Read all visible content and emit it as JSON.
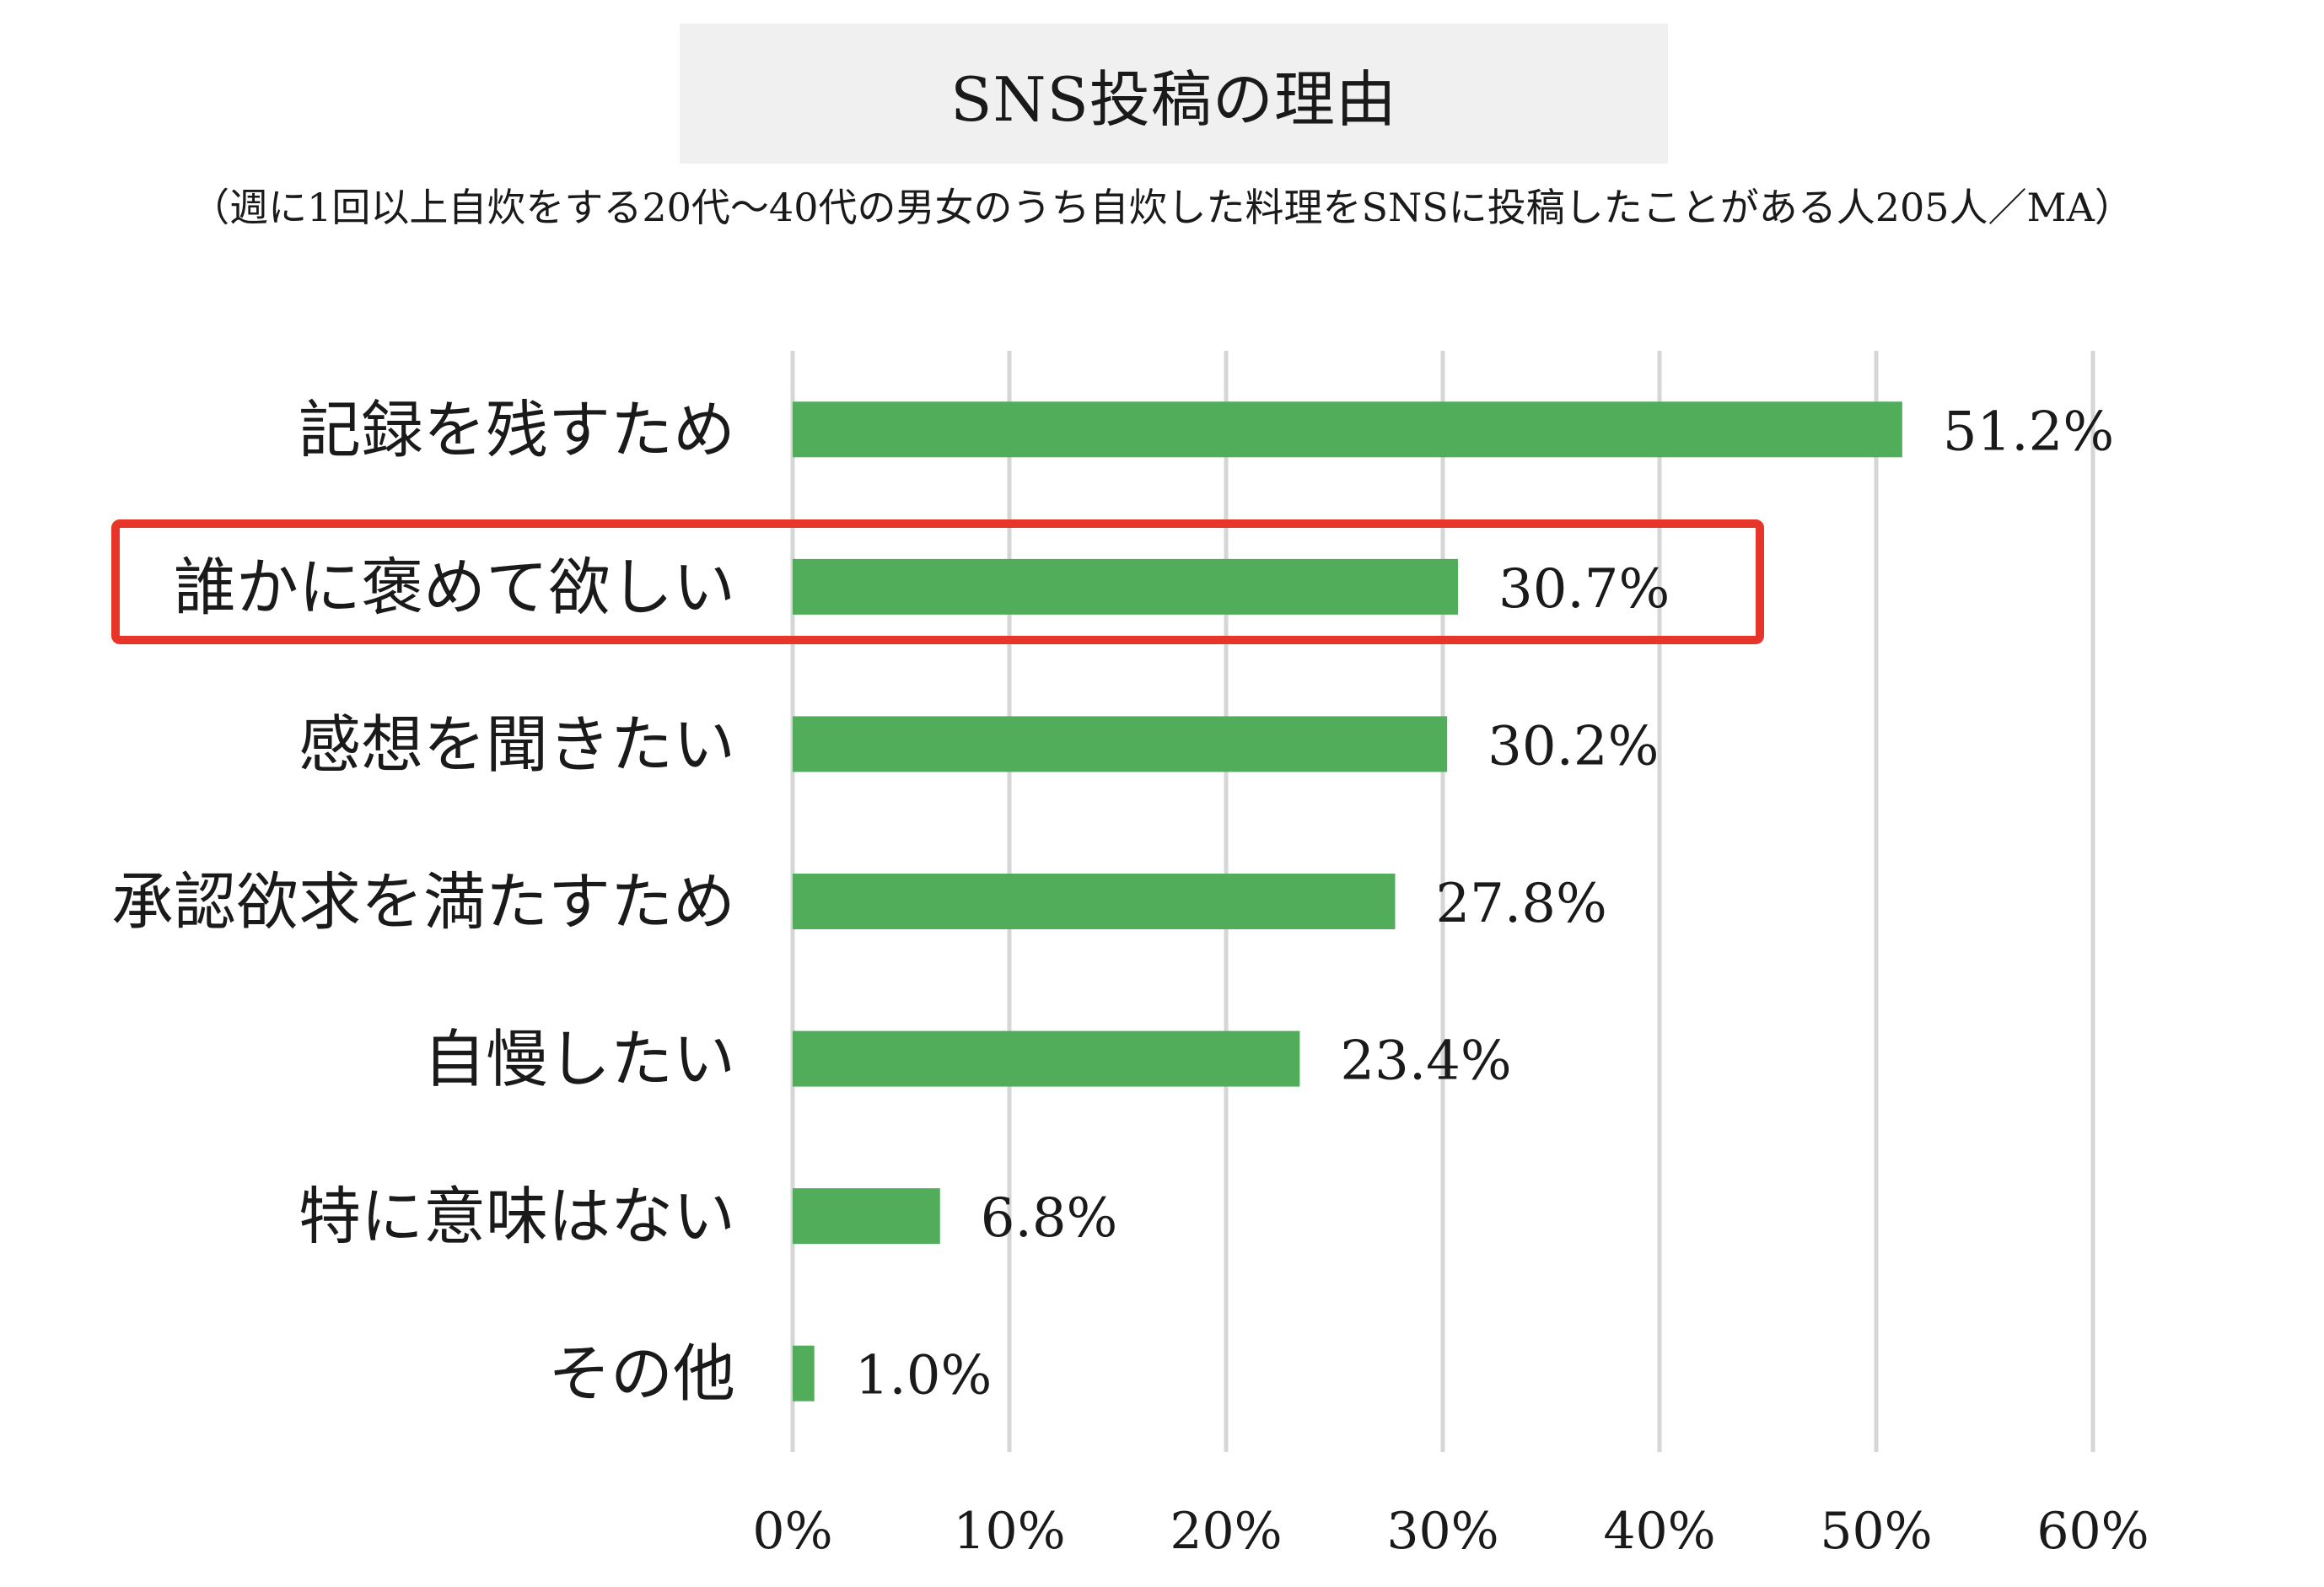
{
  "chart_data": {
    "type": "bar",
    "orientation": "horizontal",
    "title": "SNS投稿の理由",
    "subtitle": "（週に1回以上自炊をする20代〜40代の男女のうち自炊した料理をSNSに投稿したことがある人205人／MA）",
    "categories": [
      "記録を残すため",
      "誰かに褒めて欲しい",
      "感想を聞きたい",
      "承認欲求を満たすため",
      "自慢したい",
      "特に意味はない",
      "その他"
    ],
    "values": [
      51.2,
      30.7,
      30.2,
      27.8,
      23.4,
      6.8,
      1.0
    ],
    "value_labels": [
      "51.2%",
      "30.7%",
      "30.2%",
      "27.8%",
      "23.4%",
      "6.8%",
      "1.0%"
    ],
    "xlim": [
      0,
      60
    ],
    "xticks": [
      0,
      10,
      20,
      30,
      40,
      50,
      60
    ],
    "xtick_labels": [
      "0%",
      "10%",
      "20%",
      "30%",
      "40%",
      "50%",
      "60%"
    ],
    "grid": true,
    "highlighted_category": "誰かに褒めて欲しい",
    "colors": {
      "bar": "#52ad5b",
      "grid": "#d6d6d6",
      "highlight": "#e8352a"
    }
  }
}
